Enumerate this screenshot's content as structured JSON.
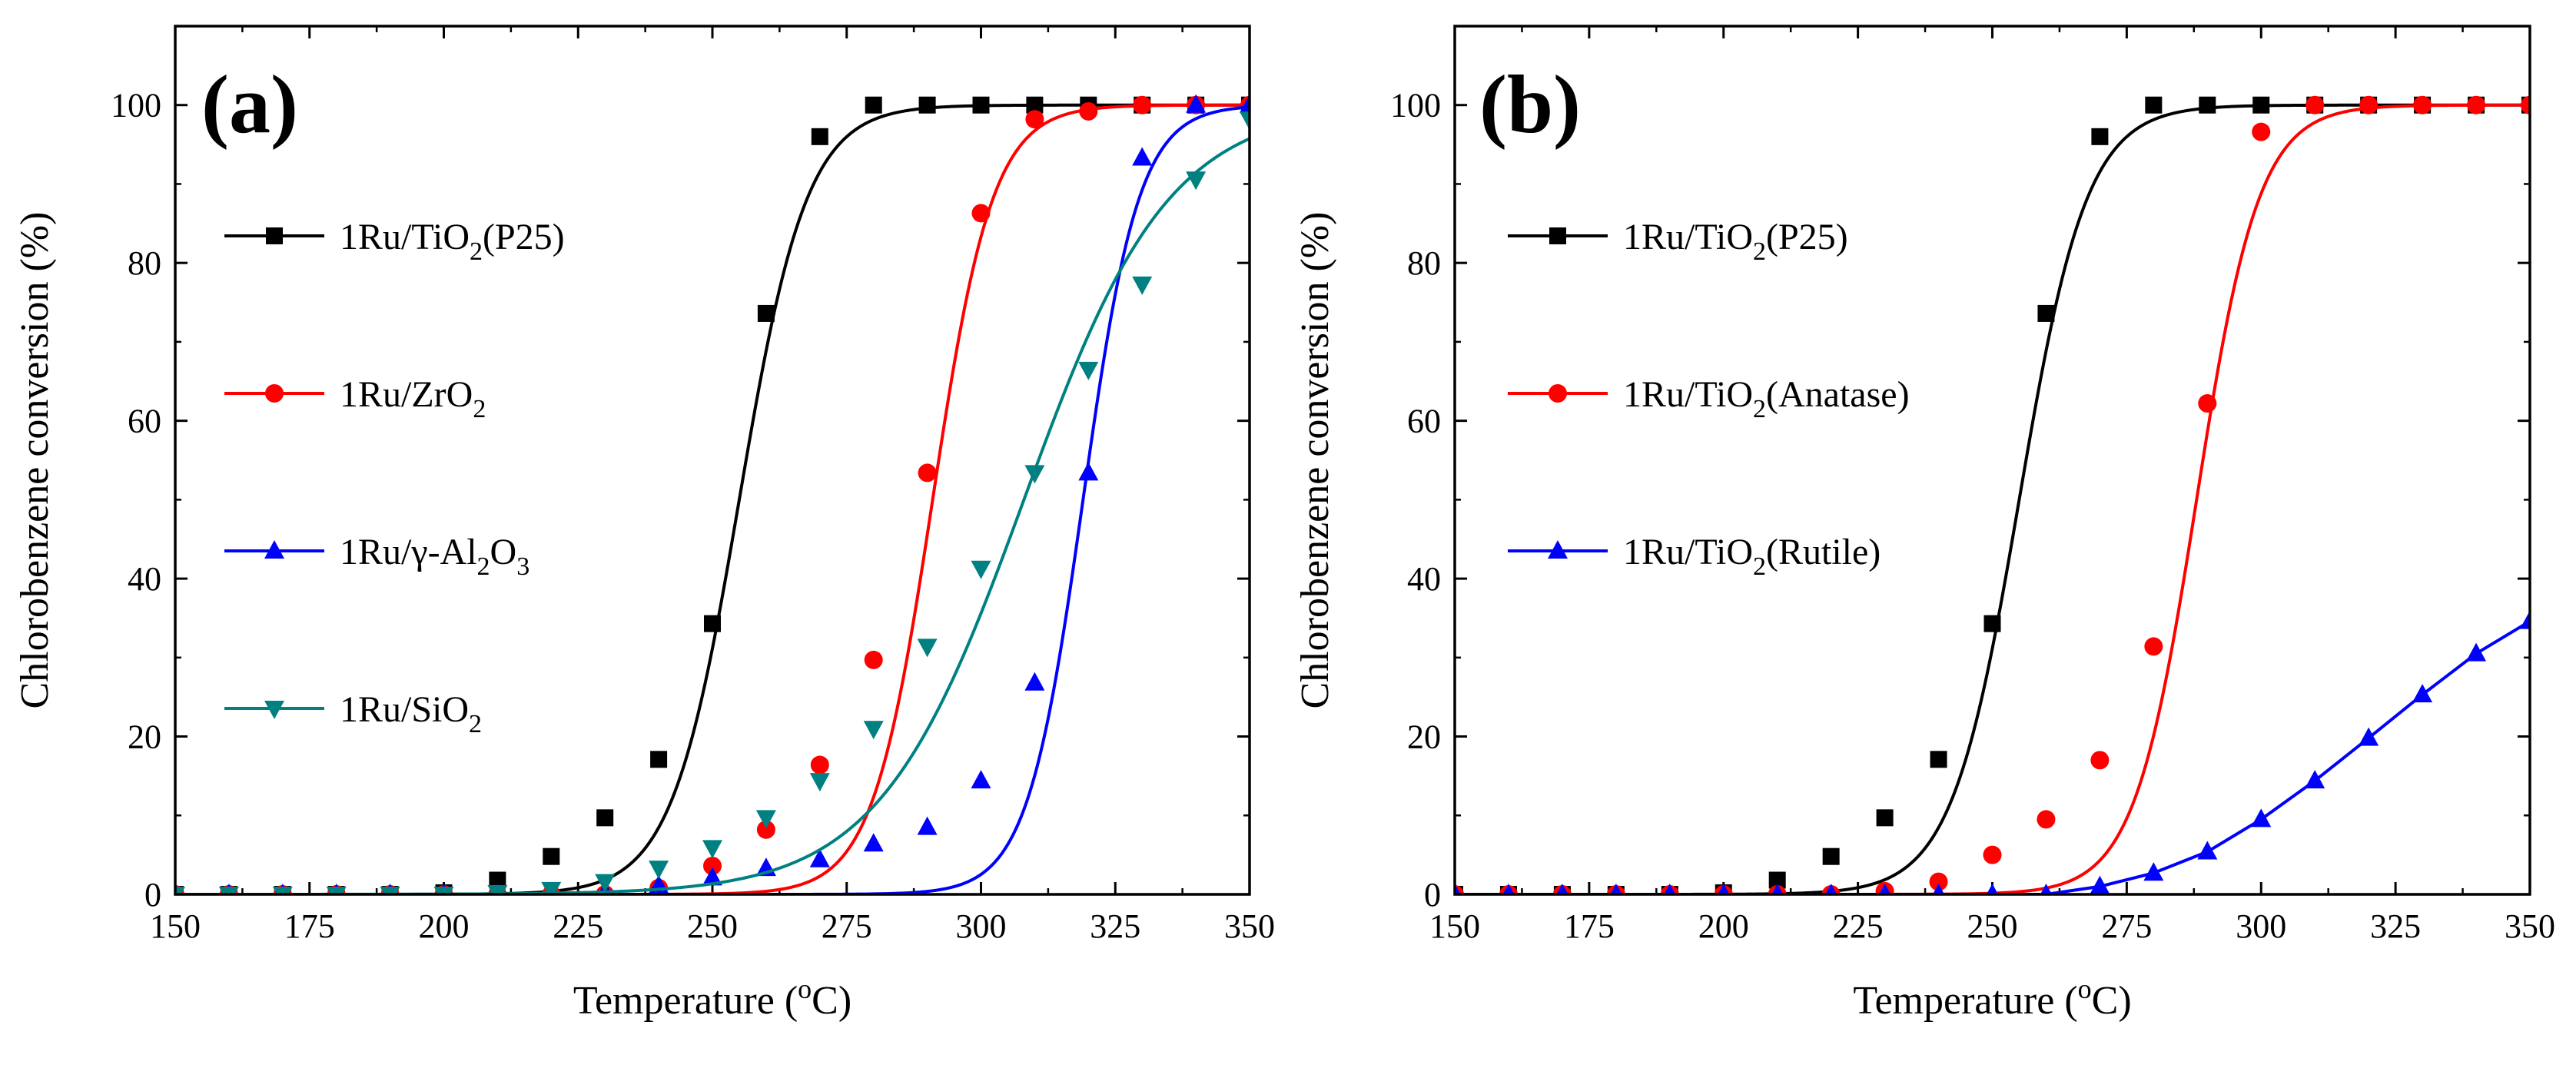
{
  "chart_data": [
    {
      "type": "line",
      "panel_label": "(a)",
      "xlabel": "Temperature (oC)",
      "xlabel_main": "Temperature (",
      "xlabel_sup": "o",
      "xlabel_end": "C)",
      "ylabel": "Chlorobenzene conversion (%)",
      "xlim": [
        150,
        350
      ],
      "ylim": [
        0,
        110
      ],
      "x_ticks": [
        150,
        175,
        200,
        225,
        250,
        275,
        300,
        325,
        350
      ],
      "y_ticks": [
        0,
        20,
        40,
        60,
        80,
        100
      ],
      "legend_position": "middle-left",
      "series": [
        {
          "name": "1Ru/TiO2(P25)",
          "legend": [
            [
              "1Ru/TiO",
              ""
            ],
            [
              "2",
              "sub"
            ],
            [
              "(P25)",
              ""
            ]
          ],
          "color": "#000000",
          "marker": "square",
          "fit": {
            "t50": 255,
            "w": 6.3
          },
          "x": [
            150,
            160,
            170,
            180,
            190,
            200,
            210,
            220,
            230,
            240,
            250,
            260,
            270,
            280,
            290,
            300,
            310,
            320,
            330,
            340,
            350
          ],
          "y": [
            0,
            0,
            0,
            0,
            0,
            0.2,
            1.8,
            4.8,
            9.7,
            17.1,
            34.3,
            73.6,
            96,
            100,
            100,
            100,
            100,
            100,
            100,
            100,
            100
          ]
        },
        {
          "name": "1Ru/ZrO2",
          "legend": [
            [
              "1Ru/ZrO",
              ""
            ],
            [
              "2",
              "sub"
            ]
          ],
          "color": "#ff0000",
          "marker": "circle",
          "fit": {
            "t50": 291,
            "w": 5.6
          },
          "x": [
            150,
            160,
            170,
            180,
            190,
            200,
            210,
            220,
            230,
            240,
            250,
            260,
            270,
            280,
            290,
            300,
            310,
            320,
            330,
            340,
            350
          ],
          "y": [
            0,
            0,
            0,
            0,
            0,
            0,
            0,
            0,
            0,
            0.8,
            3.6,
            8.2,
            16.4,
            29.7,
            53.4,
            86.3,
            98.2,
            99.2,
            100,
            100,
            100
          ]
        },
        {
          "name": "1Ru/γ-Al2O3",
          "legend": [
            [
              "1Ru/γ-Al",
              ""
            ],
            [
              "2",
              "sub"
            ],
            [
              "O",
              ""
            ],
            [
              "3",
              "sub"
            ]
          ],
          "color": "#0000ff",
          "marker": "triangle-up",
          "fit": {
            "t50": 319,
            "w": 5.2
          },
          "x": [
            150,
            160,
            170,
            180,
            190,
            200,
            210,
            220,
            230,
            240,
            250,
            260,
            270,
            280,
            290,
            300,
            310,
            320,
            330,
            340,
            350
          ],
          "y": [
            0,
            0,
            0,
            0,
            0,
            0,
            0,
            0,
            0.3,
            1.1,
            2.1,
            3.3,
            4.4,
            6.4,
            8.5,
            14.4,
            26.8,
            53.4,
            93.3,
            100,
            100
          ]
        },
        {
          "name": "1Ru/SiO2",
          "legend": [
            [
              "1Ru/SiO",
              ""
            ],
            [
              "2",
              "sub"
            ]
          ],
          "color": "#008080",
          "marker": "triangle-down",
          "fit": {
            "t50": 308,
            "w": 13.5
          },
          "x": [
            150,
            160,
            170,
            180,
            190,
            200,
            210,
            220,
            230,
            240,
            250,
            260,
            270,
            280,
            290,
            300,
            310,
            320,
            330,
            340,
            350
          ],
          "y": [
            0,
            0,
            0,
            0,
            0,
            0,
            0.2,
            0.6,
            1.6,
            3.3,
            5.9,
            9.7,
            14.4,
            21,
            31.4,
            41.3,
            53.4,
            66.5,
            77.3,
            90.6,
            98.2
          ]
        }
      ]
    },
    {
      "type": "line",
      "panel_label": "(b)",
      "xlabel": "Temperature (oC)",
      "xlabel_main": "Temperature (",
      "xlabel_sup": "o",
      "xlabel_end": "C)",
      "ylabel": "Chlorobenzene conversion (%)",
      "xlim": [
        150,
        350
      ],
      "ylim": [
        0,
        110
      ],
      "x_ticks": [
        150,
        175,
        200,
        225,
        250,
        275,
        300,
        325,
        350
      ],
      "y_ticks": [
        0,
        20,
        40,
        60,
        80,
        100
      ],
      "legend_position": "middle-left",
      "series": [
        {
          "name": "1Ru/TiO2(P25)",
          "legend": [
            [
              "1Ru/TiO",
              ""
            ],
            [
              "2",
              "sub"
            ],
            [
              "(P25)",
              ""
            ]
          ],
          "color": "#000000",
          "marker": "square",
          "fit": {
            "t50": 255,
            "w": 6.3
          },
          "x": [
            150,
            160,
            170,
            180,
            190,
            200,
            210,
            220,
            230,
            240,
            250,
            260,
            270,
            280,
            290,
            300,
            310,
            320,
            330,
            340,
            350
          ],
          "y": [
            0,
            0,
            0,
            0,
            0,
            0.2,
            1.8,
            4.8,
            9.7,
            17.1,
            34.3,
            73.6,
            96,
            100,
            100,
            100,
            100,
            100,
            100,
            100,
            100
          ]
        },
        {
          "name": "1Ru/TiO2(Anatase)",
          "legend": [
            [
              "1Ru/TiO",
              ""
            ],
            [
              "2",
              "sub"
            ],
            [
              "(Anatase)",
              ""
            ]
          ],
          "color": "#ff0000",
          "marker": "circle",
          "fit": {
            "t50": 288,
            "w": 5.8
          },
          "x": [
            150,
            160,
            170,
            180,
            190,
            200,
            210,
            220,
            230,
            240,
            250,
            260,
            270,
            280,
            290,
            300,
            310,
            320,
            330,
            340,
            350
          ],
          "y": [
            0,
            0,
            0,
            0,
            0,
            0,
            0,
            0,
            0.4,
            1.6,
            5,
            9.5,
            17,
            31.4,
            62.2,
            96.6,
            100,
            100,
            100,
            100,
            100
          ]
        },
        {
          "name": "1Ru/TiO2(Rutile)",
          "legend": [
            [
              "1Ru/TiO",
              ""
            ],
            [
              "2",
              "sub"
            ],
            [
              "(Rutile)",
              ""
            ]
          ],
          "color": "#0000ff",
          "marker": "triangle-up",
          "fit": null,
          "x": [
            150,
            160,
            170,
            180,
            190,
            200,
            210,
            220,
            230,
            240,
            250,
            260,
            270,
            280,
            290,
            300,
            310,
            320,
            330,
            340,
            350
          ],
          "y": [
            0,
            0,
            0,
            0,
            0,
            0,
            0,
            0,
            0,
            0,
            0,
            0,
            1,
            2.7,
            5.4,
            9.5,
            14.4,
            19.8,
            25.3,
            30.5,
            34.6
          ]
        }
      ]
    }
  ]
}
